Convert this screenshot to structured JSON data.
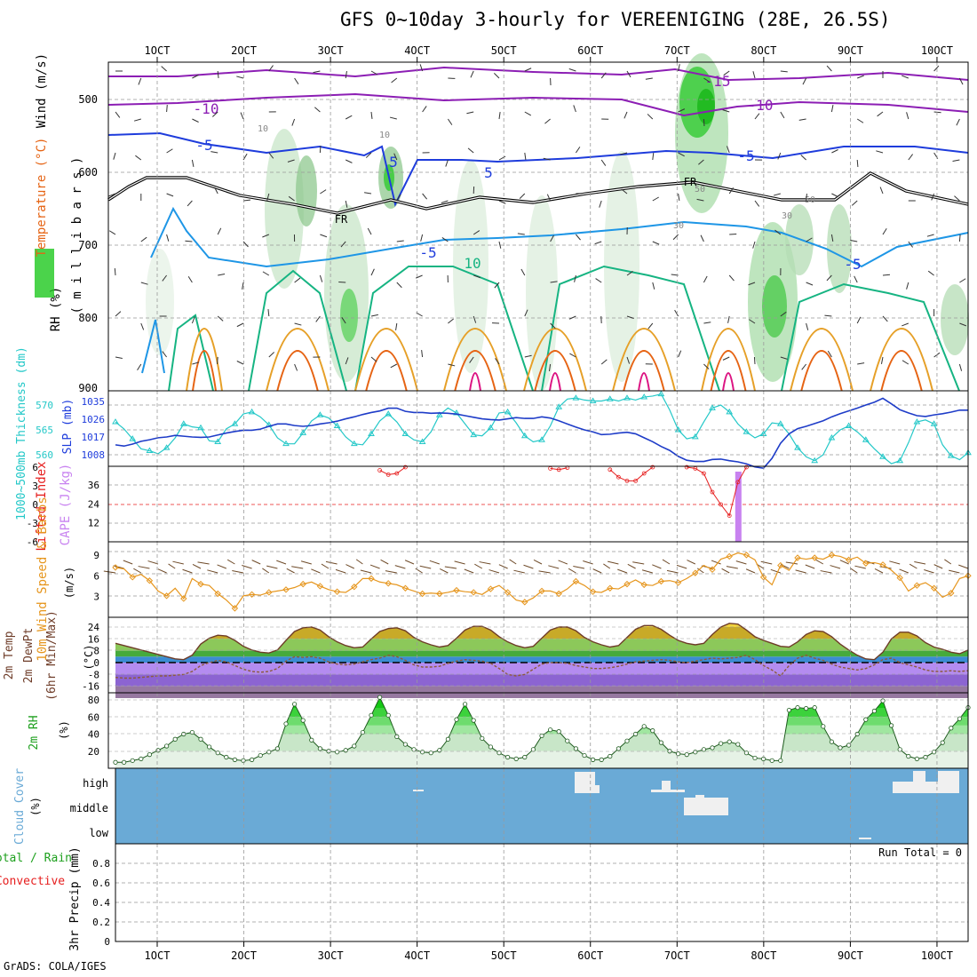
{
  "title": "GFS 0~10day 3-hourly for VEREENIGING (28E, 26.5S)",
  "footer": "GrADS: COLA/IGES",
  "time_axis": {
    "labels": [
      "1OCT",
      "2OCT",
      "3OCT",
      "4OCT",
      "5OCT",
      "6OCT",
      "7OCT",
      "8OCT",
      "9OCT",
      "10OCT"
    ]
  },
  "colors": {
    "purple": "#8c1eb4",
    "blue": "#1e3cdc",
    "lightblue": "#1e96e6",
    "teal": "#16b482",
    "orange": "#e6a028",
    "darkorange": "#e66414",
    "magenta": "#dc1482",
    "rh_green": "#1ec81e",
    "cloud": "#6aaad6",
    "thickness": "#24c8c8",
    "slp": "#1e3cc8",
    "cape": "#c882f0",
    "wind": "#e6961e",
    "li": "#e61e1e"
  },
  "chart_data": [
    {
      "type": "contour",
      "panel": "upper_air",
      "ylabel_parts": [
        "RH (%)",
        "Temperature (°C)",
        "Wind (m/s)"
      ],
      "ylabel2": "( m i l l i b a r s )",
      "y_ticks": [
        "500",
        "600",
        "700",
        "800",
        "900"
      ],
      "ylim": [
        900,
        450
      ],
      "temperature_contour_labels": [
        "-15",
        "-10",
        "-10",
        "-5",
        "-5",
        "-5",
        "5",
        "-5",
        "5",
        "10"
      ],
      "freezing_labels": [
        "FR",
        "FR"
      ],
      "rh_labels": [
        "10",
        "10",
        "30",
        "50",
        "30",
        "50"
      ]
    },
    {
      "type": "line",
      "panel": "thickness_slp",
      "ylabel_left": "1000~500mb Thickness (dm)",
      "ylabel_right": "SLP (mb)",
      "thickness_ticks": [
        "570",
        "565",
        "560"
      ],
      "slp_ticks": [
        "1035",
        "1026",
        "1017",
        "1008"
      ],
      "series": [
        {
          "name": "1000~500mb Thickness (dm)",
          "unit": "dm",
          "values": [
            566.6,
            565.2,
            563.2,
            561.2,
            560.8,
            560.2,
            561.4,
            563.4,
            566.2,
            565.6,
            565.4,
            562.8,
            562.6,
            565.2,
            566.2,
            568.2,
            568.6,
            567.6,
            566.0,
            563.4,
            562.2,
            562.2,
            564.4,
            566.8,
            568.0,
            567.4,
            565.8,
            563.6,
            562.2,
            562.0,
            564.2,
            566.8,
            568.2,
            566.6,
            564.2,
            563.0,
            562.6,
            564.6,
            568.0,
            569.4,
            568.4,
            566.2,
            564.0,
            563.8,
            565.4,
            568.4,
            568.6,
            566.4,
            563.8,
            562.6,
            563.0,
            565.8,
            569.6,
            571.2,
            571.4,
            571.0,
            570.8,
            570.8,
            571.2,
            570.8,
            571.4,
            571.0,
            571.6,
            571.8,
            572.2,
            569.0,
            565.0,
            563.2,
            563.6,
            566.6,
            569.4,
            570.0,
            568.6,
            566.2,
            564.6,
            563.4,
            564.2,
            566.4,
            566.2,
            564.2,
            561.4,
            559.6,
            558.8,
            560.0,
            563.4,
            565.0,
            565.8,
            564.6,
            563.0,
            561.2,
            559.6,
            558.2,
            558.8,
            562.4,
            566.6,
            567.0,
            566.2,
            562.0,
            559.8,
            559.0,
            560.4
          ]
        },
        {
          "name": "SLP (mb)",
          "unit": "mb",
          "values": [
            1013,
            1012.4,
            1013.4,
            1014.8,
            1015.6,
            1016.6,
            1017,
            1017.8,
            1017.4,
            1017,
            1016.8,
            1017,
            1018,
            1019,
            1019.8,
            1020.4,
            1020.4,
            1021,
            1022.4,
            1023.6,
            1023.6,
            1022.8,
            1022.4,
            1022.8,
            1023.6,
            1024.2,
            1025,
            1026.2,
            1027.2,
            1028.4,
            1029.4,
            1030.2,
            1031.6,
            1031.6,
            1030,
            1029.4,
            1029.4,
            1029,
            1029.2,
            1029,
            1028.6,
            1027.8,
            1027,
            1026.2,
            1025.8,
            1025.6,
            1026.2,
            1026.8,
            1026.4,
            1026.4,
            1027.2,
            1026.6,
            1025.2,
            1023.6,
            1022,
            1020.6,
            1019.6,
            1018.2,
            1018.4,
            1019,
            1019.4,
            1018.6,
            1016.6,
            1014.6,
            1012.2,
            1010.2,
            1007.2,
            1005.2,
            1004.6,
            1004.6,
            1005.6,
            1005.8,
            1005,
            1004.4,
            1003.4,
            1001.8,
            1001.2,
            1006.2,
            1013.8,
            1018.6,
            1021.2,
            1022.4,
            1023.8,
            1025.2,
            1027.2,
            1028.8,
            1030.2,
            1031.6,
            1033.2,
            1034.6,
            1036.6,
            1033.8,
            1030.8,
            1029.2,
            1027.8,
            1027.4,
            1028.2,
            1028.8,
            1029.6,
            1030.6,
            1030.6
          ]
        }
      ]
    },
    {
      "type": "bar+line",
      "panel": "instability",
      "ylabel_left": "Lifted Index",
      "ylabel_right": "CAPE (J/kg)",
      "li_ticks": [
        "-6",
        "-3",
        "0",
        "3",
        "6"
      ],
      "cape_ticks": [
        "36",
        "24",
        "12"
      ],
      "cape_bar": {
        "time_index": 73,
        "value_jkg": 48
      },
      "li_segments": [
        {
          "start": 31,
          "values": [
            5.5,
            4.8,
            5.0,
            6.0
          ]
        },
        {
          "start": 51,
          "values": [
            5.8,
            5.6,
            5.9
          ]
        },
        {
          "start": 58,
          "values": [
            5.6,
            4.4,
            3.8,
            3.8,
            5.0,
            6.0
          ]
        },
        {
          "start": 67,
          "values": [
            6.0,
            5.8,
            5.0,
            2.0,
            0.0,
            -1.8,
            3.6,
            6.0
          ]
        }
      ]
    },
    {
      "type": "line+barbs",
      "panel": "wind_10m",
      "ylabel": "10m Wind Speed & Barbs",
      "unit": "(m/s)",
      "y_ticks": [
        "9",
        "6",
        "3"
      ],
      "ylim": [
        0,
        10
      ],
      "series": [
        {
          "name": "10m Wind Speed",
          "unit": "m/s",
          "values": [
            7.2,
            7.0,
            5.8,
            6.2,
            5.3,
            3.8,
            3.1,
            4.2,
            2.7,
            5.6,
            4.8,
            4.6,
            3.4,
            2.5,
            1.3,
            3.1,
            3.3,
            3.2,
            3.6,
            3.8,
            4.0,
            4.3,
            4.8,
            5.1,
            4.5,
            4.0,
            3.7,
            3.6,
            4.4,
            5.6,
            5.6,
            5.1,
            4.9,
            4.7,
            4.2,
            3.8,
            3.4,
            3.5,
            3.4,
            3.6,
            3.9,
            3.7,
            3.6,
            3.3,
            4.1,
            4.6,
            3.6,
            2.5,
            2.2,
            2.8,
            3.8,
            3.8,
            3.4,
            4.1,
            5.2,
            4.6,
            3.7,
            3.6,
            4.2,
            4.1,
            4.8,
            5.4,
            4.7,
            4.6,
            5.2,
            5.3,
            5.0,
            5.6,
            6.4,
            7.5,
            6.9,
            8.4,
            8.8,
            9.3,
            9.0,
            8.3,
            5.8,
            4.7,
            7.5,
            6.8,
            8.6,
            8.4,
            8.6,
            8.4,
            9.0,
            8.8,
            8.3,
            8.7,
            7.8,
            7.9,
            7.6,
            6.8,
            5.7,
            3.8,
            4.6,
            5.0,
            4.2,
            2.9,
            3.5,
            5.6,
            6.0
          ]
        }
      ]
    },
    {
      "type": "area",
      "panel": "temperature_2m",
      "ylabel": "2m Temp 2m DewPt (6hr Min/Max)",
      "unit": "(°C)",
      "y_ticks": [
        "24",
        "16",
        "8",
        "0",
        "-8",
        "-16"
      ],
      "ylim": [
        -24,
        30
      ],
      "series": [
        {
          "name": "2m Temp",
          "unit": "°C",
          "values": [
            13,
            11.5,
            10,
            8.5,
            7,
            5.5,
            4,
            2.5,
            2,
            5,
            12.5,
            16.5,
            18.5,
            18,
            15,
            11,
            8.5,
            7,
            6.5,
            8.5,
            15,
            21,
            23.5,
            24,
            22,
            17.5,
            14,
            11.5,
            10,
            10.5,
            16,
            21,
            23,
            23.5,
            21.5,
            17,
            14,
            12,
            10.5,
            11.5,
            16.5,
            22,
            24.5,
            24.5,
            22,
            17.5,
            14,
            11.5,
            10,
            11,
            16.5,
            22,
            24,
            24,
            21.5,
            17,
            14,
            12,
            10.5,
            11.5,
            17,
            22.5,
            25,
            25,
            22.5,
            18.5,
            15,
            13,
            12,
            13,
            19,
            24,
            26.5,
            26,
            22,
            17.5,
            15,
            13,
            11,
            10.5,
            14,
            19,
            21.5,
            21,
            17.5,
            12.5,
            8.5,
            5,
            2.5,
            2,
            7,
            16,
            20.5,
            20.5,
            18,
            13.5,
            10.5,
            9,
            7,
            6,
            8.5
          ]
        },
        {
          "name": "2m DewPt",
          "unit": "°C",
          "values": [
            -10,
            -10.5,
            -10.5,
            -10,
            -9.5,
            -9,
            -9,
            -8.5,
            -8,
            -6,
            -2,
            0,
            1.5,
            0.5,
            -2,
            -4.5,
            -6,
            -6.5,
            -6,
            -4,
            1,
            4,
            3.5,
            4,
            3,
            0.5,
            -1,
            -1.5,
            -1,
            0.5,
            2,
            3,
            5,
            4,
            1.5,
            -1.5,
            -3,
            -3,
            -2.5,
            -0.5,
            1,
            2,
            1.5,
            1,
            -0.5,
            -4,
            -8,
            -9,
            -8,
            -4.5,
            -1,
            0,
            0,
            -0.5,
            -2,
            -3,
            -4,
            -4,
            -3.5,
            -2.5,
            -1,
            0.5,
            1,
            1.5,
            2,
            1.5,
            0.5,
            0,
            1,
            2,
            3,
            2.5,
            3,
            3.5,
            5,
            2,
            -2,
            -5,
            -9,
            -2,
            3,
            5,
            3,
            1.5,
            -1,
            -3,
            -4,
            -5,
            -4,
            -1.5,
            2,
            3,
            0,
            -1.5,
            -3,
            -5,
            -6,
            -6,
            -5.5,
            -6,
            -5.5
          ]
        }
      ]
    },
    {
      "type": "area",
      "panel": "rh_2m",
      "ylabel": "2m RH",
      "unit": "(%)",
      "y_ticks": [
        "80",
        "60",
        "40",
        "20"
      ],
      "ylim": [
        0,
        90
      ],
      "series": [
        {
          "name": "2m RH",
          "unit": "%",
          "values": [
            7,
            7,
            9,
            11,
            16,
            21,
            26,
            34,
            40,
            42,
            34,
            25,
            18,
            13,
            10,
            9,
            10,
            15,
            19,
            23,
            52,
            75,
            56,
            33,
            23,
            20,
            19,
            21,
            26,
            42,
            62,
            83,
            62,
            37,
            28,
            22,
            19,
            18,
            21,
            34,
            57,
            75,
            56,
            35,
            25,
            18,
            13,
            11,
            13,
            22,
            38,
            45,
            43,
            32,
            23,
            15,
            10,
            10,
            14,
            23,
            32,
            40,
            49,
            44,
            30,
            20,
            17,
            16,
            19,
            22,
            24,
            29,
            31,
            28,
            18,
            12,
            11,
            9,
            9,
            68,
            71,
            70,
            71,
            49,
            31,
            24,
            27,
            40,
            57,
            67,
            79,
            50,
            22,
            14,
            11,
            13,
            19,
            30,
            47,
            58,
            71
          ]
        }
      ]
    },
    {
      "type": "heatmap",
      "panel": "cloud_cover",
      "ylabel": "Cloud Cover",
      "unit": "(%)",
      "levels": [
        "high",
        "middle",
        "low"
      ]
    },
    {
      "type": "bar",
      "panel": "precipitation",
      "ylabel_left_parts": [
        "Total / Rain",
        "Convective"
      ],
      "ylabel": "3hr Precip (mm)",
      "y_ticks": [
        "0.8",
        "0.6",
        "0.4",
        "0.2",
        "0"
      ],
      "ylim": [
        0,
        1.0
      ],
      "run_total": "Run Total = 0",
      "values": []
    }
  ]
}
